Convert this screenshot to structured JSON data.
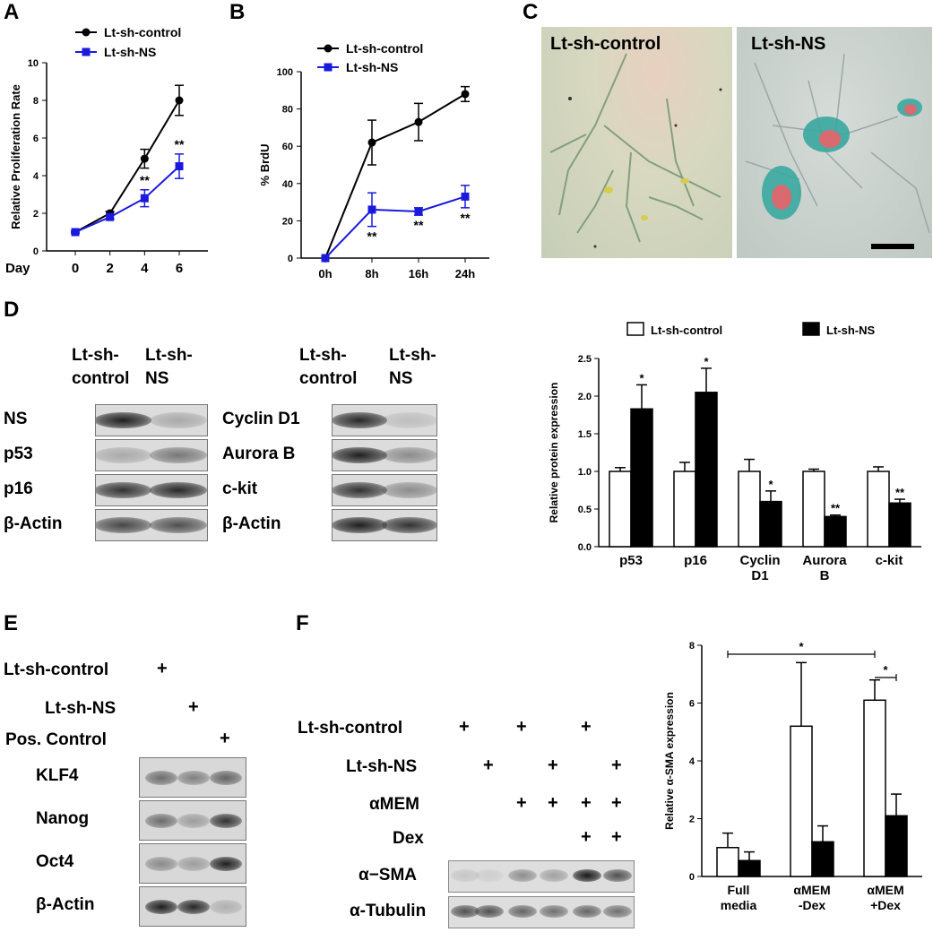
{
  "panels": {
    "A": "A",
    "B": "B",
    "C": "C",
    "D": "D",
    "E": "E",
    "F": "F"
  },
  "chart_data": [
    {
      "id": "A",
      "type": "line",
      "xlabel": "Day",
      "ylabel": "Relative Proliferation Rate",
      "x": [
        "0",
        "2",
        "4",
        "6"
      ],
      "ylim": [
        0,
        10
      ],
      "yticks": [
        "0",
        "2",
        "4",
        "6",
        "8",
        "10"
      ],
      "series": [
        {
          "name": "Lt-sh-control",
          "color": "#000000",
          "values": [
            1.0,
            2.0,
            4.9,
            8.0
          ],
          "err": [
            0.05,
            0.1,
            0.5,
            0.8
          ]
        },
        {
          "name": "Lt-sh-NS",
          "color": "#1a1adc",
          "values": [
            1.0,
            1.8,
            2.8,
            4.5
          ],
          "err": [
            0.05,
            0.1,
            0.45,
            0.65
          ]
        }
      ],
      "annotations": [
        {
          "x": "4",
          "text": "**"
        },
        {
          "x": "6",
          "text": "**"
        }
      ]
    },
    {
      "id": "B",
      "type": "line",
      "xlabel": "",
      "ylabel": "% BrdU",
      "x": [
        "0h",
        "8h",
        "16h",
        "24h"
      ],
      "ylim": [
        0,
        100
      ],
      "yticks": [
        "0",
        "20",
        "40",
        "60",
        "80",
        "100"
      ],
      "series": [
        {
          "name": "Lt-sh-control",
          "color": "#000000",
          "values": [
            0,
            62,
            73,
            88
          ],
          "err": [
            0,
            12,
            10,
            4
          ]
        },
        {
          "name": "Lt-sh-NS",
          "color": "#1a1adc",
          "values": [
            0,
            26,
            25,
            33
          ],
          "err": [
            0,
            9,
            2,
            6
          ]
        }
      ],
      "annotations": [
        {
          "x": "8h",
          "text": "**"
        },
        {
          "x": "16h",
          "text": "**"
        },
        {
          "x": "24h",
          "text": "**"
        }
      ]
    },
    {
      "id": "D",
      "type": "bar",
      "ylabel": "Relative protein expression",
      "categories": [
        [
          "p53"
        ],
        [
          "p16"
        ],
        [
          "Cyclin",
          "D1"
        ],
        [
          "Aurora",
          "B"
        ],
        [
          "c-kit"
        ]
      ],
      "ylim": [
        0,
        2.5
      ],
      "yticks": [
        "0.0",
        "0.5",
        "1.0",
        "1.5",
        "2.0",
        "2.5"
      ],
      "series": [
        {
          "name": "Lt-sh-control",
          "fill": "#ffffff",
          "values": [
            1.0,
            1.0,
            1.0,
            1.0,
            1.0
          ],
          "err": [
            0.05,
            0.12,
            0.16,
            0.03,
            0.06
          ]
        },
        {
          "name": "Lt-sh-NS",
          "fill": "#000000",
          "values": [
            1.83,
            2.05,
            0.6,
            0.4,
            0.58
          ],
          "err": [
            0.32,
            0.32,
            0.14,
            0.02,
            0.05
          ]
        }
      ],
      "annotations": [
        "*",
        "*",
        "*",
        "**",
        "**"
      ]
    },
    {
      "id": "F",
      "type": "bar",
      "ylabel": "Relative α-SMA expression",
      "categories": [
        [
          "Full",
          "media"
        ],
        [
          "αMEM",
          "-Dex"
        ],
        [
          "αMEM",
          "+Dex"
        ]
      ],
      "ylim": [
        0,
        8
      ],
      "yticks": [
        "0",
        "2",
        "4",
        "6",
        "8"
      ],
      "series": [
        {
          "name": "Lt-sh-control",
          "fill": "#ffffff",
          "values": [
            1.0,
            5.2,
            6.1
          ],
          "err": [
            0.5,
            2.2,
            0.7
          ]
        },
        {
          "name": "Lt-sh-NS",
          "fill": "#000000",
          "values": [
            0.55,
            1.2,
            2.1
          ],
          "err": [
            0.3,
            0.55,
            0.75
          ]
        }
      ],
      "brackets": [
        "*",
        "*"
      ]
    }
  ],
  "panelC": {
    "label_control": "Lt-sh-control",
    "label_ns": "Lt-sh-NS"
  },
  "panelD": {
    "blot1_headers": [
      [
        "Lt-sh-",
        "control"
      ],
      [
        "Lt-sh-",
        "NS"
      ]
    ],
    "blot1_rows": [
      "NS",
      "p53",
      "p16",
      "β-Actin"
    ],
    "blot2_headers": [
      [
        "Lt-sh-",
        "control"
      ],
      [
        "Lt-sh-",
        "NS"
      ]
    ],
    "blot2_rows": [
      "Cyclin D1",
      "Aurora B",
      "c-kit",
      "β-Actin"
    ]
  },
  "panelE": {
    "conditions": [
      "Lt-sh-control",
      "Lt-sh-NS",
      "Pos. Control"
    ],
    "plus": "+",
    "rows": [
      "KLF4",
      "Nanog",
      "Oct4",
      "β-Actin"
    ]
  },
  "panelF": {
    "conditions": [
      "Lt-sh-control",
      "Lt-sh-NS",
      "αMEM",
      "Dex"
    ],
    "matrix": [
      [
        1,
        0,
        1,
        0,
        1,
        0
      ],
      [
        0,
        1,
        0,
        1,
        0,
        1
      ],
      [
        0,
        0,
        1,
        1,
        1,
        1
      ],
      [
        0,
        0,
        0,
        0,
        1,
        1
      ]
    ],
    "plus": "+",
    "rows": [
      "α−SMA",
      "α-Tubulin"
    ]
  }
}
